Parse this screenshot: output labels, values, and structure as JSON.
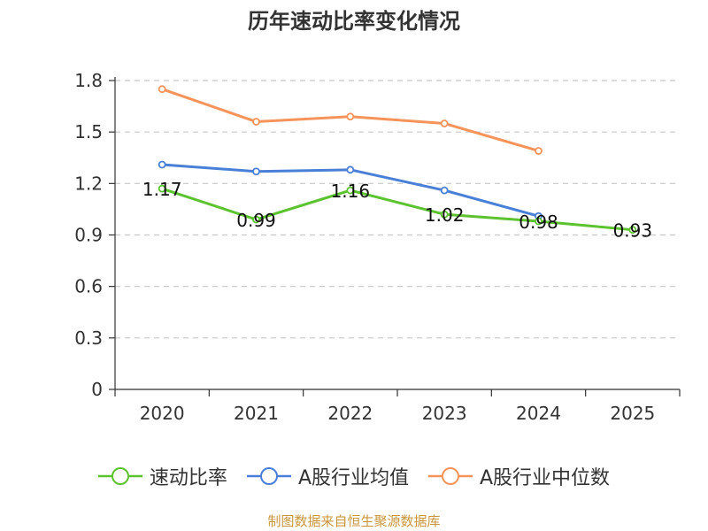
{
  "chart_data": {
    "type": "line",
    "title": "历年速动比率变化情况",
    "categories": [
      "2020",
      "2021",
      "2022",
      "2023",
      "2024",
      "2025"
    ],
    "ylim": [
      0,
      1.8
    ],
    "yticks": [
      "0",
      "0.3",
      "0.6",
      "0.9",
      "1.2",
      "1.5",
      "1.8"
    ],
    "grid": true,
    "legend_position": "bottom",
    "series": [
      {
        "name": "速动比率",
        "color": "#5cc22f",
        "values": [
          1.17,
          0.99,
          1.16,
          1.02,
          0.98,
          0.93
        ],
        "labels": [
          "1.17",
          "0.99",
          "1.16",
          "1.02",
          "0.98",
          "0.93"
        ]
      },
      {
        "name": "A股行业均值",
        "color": "#4a7fd8",
        "values": [
          1.31,
          1.27,
          1.28,
          1.16,
          1.01,
          null
        ]
      },
      {
        "name": "A股行业中位数",
        "color": "#f5935a",
        "values": [
          1.75,
          1.56,
          1.59,
          1.55,
          1.39,
          null
        ]
      }
    ]
  },
  "footer": {
    "source": "制图数据来自恒生聚源数据库"
  }
}
